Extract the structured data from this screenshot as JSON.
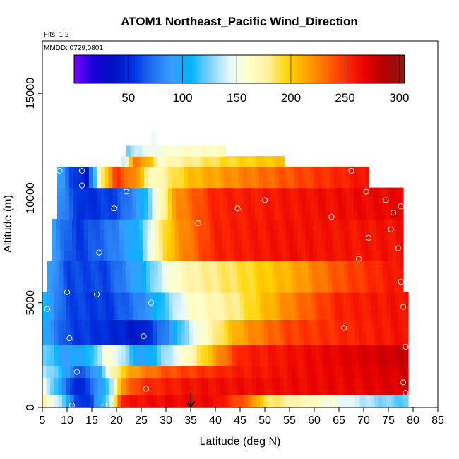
{
  "chart_data": {
    "type": "heatmap",
    "title": "ATOM1 Northeast_Pacific Wind_Direction",
    "flights_label": "Flts: 1,2",
    "dates_label": "MMDD: 0729,0801",
    "xlabel": "Latitude (deg N)",
    "ylabel": "Altitude (m)",
    "xlim": [
      5,
      85
    ],
    "ylim": [
      0,
      17500
    ],
    "x_ticks": [
      "5",
      "10",
      "15",
      "20",
      "25",
      "30",
      "35",
      "40",
      "45",
      "50",
      "55",
      "60",
      "65",
      "70",
      "75",
      "80",
      "85"
    ],
    "y_ticks": [
      "0",
      "5000",
      "10000",
      "15000"
    ],
    "y_tick_values": [
      0,
      5000,
      10000,
      15000
    ],
    "colorbar": {
      "range": [
        0,
        305
      ],
      "ticks": [
        "50",
        "100",
        "150",
        "200",
        "250",
        "300"
      ],
      "tick_values": [
        50,
        100,
        150,
        200,
        250,
        300
      ],
      "colors": [
        "#7a00ff",
        "#1a00d8",
        "#0010c0",
        "#0032e0",
        "#1e6ef0",
        "#3a9cff",
        "#00b4ff",
        "#7fd4ff",
        "#e6f8ff",
        "#ffffc8",
        "#fff0a0",
        "#ffd400",
        "#ffa200",
        "#ff6a00",
        "#ff2a00",
        "#e80000",
        "#b40000",
        "#8a1a1a"
      ]
    },
    "arrow_marker_latitude": 35,
    "layers": [
      {
        "alt": [
          0,
          600
        ],
        "x": [
          5,
          79
        ],
        "stops": [
          [
            5,
            180
          ],
          [
            10,
            110
          ],
          [
            12,
            50
          ],
          [
            15,
            60
          ],
          [
            17,
            110
          ],
          [
            19,
            140
          ],
          [
            21,
            260
          ],
          [
            30,
            265
          ],
          [
            40,
            265
          ],
          [
            47,
            230
          ],
          [
            50,
            190
          ],
          [
            58,
            170
          ],
          [
            65,
            150
          ],
          [
            72,
            130
          ],
          [
            78,
            120
          ]
        ]
      },
      {
        "alt": [
          600,
          1400
        ],
        "x": [
          5,
          79
        ],
        "stops": [
          [
            5,
            160
          ],
          [
            9,
            90
          ],
          [
            12,
            40
          ],
          [
            16,
            80
          ],
          [
            19,
            130
          ],
          [
            21,
            220
          ],
          [
            25,
            250
          ],
          [
            35,
            262
          ],
          [
            55,
            265
          ],
          [
            70,
            268
          ],
          [
            79,
            275
          ]
        ]
      },
      {
        "alt": [
          1400,
          2000
        ],
        "x": [
          5,
          79
        ],
        "stops": [
          [
            5,
            140
          ],
          [
            9,
            110
          ],
          [
            12,
            60
          ],
          [
            16,
            90
          ],
          [
            19,
            170
          ],
          [
            23,
            215
          ],
          [
            30,
            240
          ],
          [
            45,
            258
          ],
          [
            79,
            275
          ]
        ]
      },
      {
        "alt": [
          2000,
          3000
        ],
        "x": [
          5,
          79
        ],
        "stops": [
          [
            5,
            130
          ],
          [
            10,
            90
          ],
          [
            15,
            110
          ],
          [
            18,
            160
          ],
          [
            20,
            150
          ],
          [
            25,
            90
          ],
          [
            30,
            130
          ],
          [
            35,
            170
          ],
          [
            40,
            215
          ],
          [
            45,
            255
          ],
          [
            79,
            280
          ]
        ]
      },
      {
        "alt": [
          3000,
          4200
        ],
        "x": [
          5,
          79
        ],
        "stops": [
          [
            5,
            100
          ],
          [
            10,
            60
          ],
          [
            18,
            50
          ],
          [
            25,
            40
          ],
          [
            30,
            80
          ],
          [
            35,
            140
          ],
          [
            40,
            180
          ],
          [
            45,
            215
          ],
          [
            55,
            245
          ],
          [
            79,
            262
          ]
        ]
      },
      {
        "alt": [
          4200,
          5500
        ],
        "x": [
          5,
          79
        ],
        "stops": [
          [
            5,
            110
          ],
          [
            10,
            60
          ],
          [
            18,
            55
          ],
          [
            25,
            80
          ],
          [
            30,
            120
          ],
          [
            35,
            160
          ],
          [
            45,
            185
          ],
          [
            55,
            225
          ],
          [
            65,
            255
          ],
          [
            79,
            262
          ]
        ]
      },
      {
        "alt": [
          5500,
          7000
        ],
        "x": [
          6,
          78
        ],
        "stops": [
          [
            6,
            100
          ],
          [
            10,
            60
          ],
          [
            18,
            60
          ],
          [
            25,
            100
          ],
          [
            30,
            150
          ],
          [
            35,
            175
          ],
          [
            45,
            190
          ],
          [
            55,
            210
          ],
          [
            65,
            240
          ],
          [
            78,
            262
          ]
        ]
      },
      {
        "alt": [
          7000,
          9000
        ],
        "x": [
          7,
          78
        ],
        "stops": [
          [
            7,
            90
          ],
          [
            12,
            55
          ],
          [
            20,
            80
          ],
          [
            25,
            110
          ],
          [
            28,
            170
          ],
          [
            32,
            215
          ],
          [
            40,
            255
          ],
          [
            55,
            262
          ],
          [
            68,
            260
          ],
          [
            78,
            262
          ]
        ]
      },
      {
        "alt": [
          9000,
          10500
        ],
        "x": [
          8,
          78
        ],
        "stops": [
          [
            8,
            90
          ],
          [
            13,
            50
          ],
          [
            20,
            60
          ],
          [
            25,
            95
          ],
          [
            28,
            150
          ],
          [
            32,
            220
          ],
          [
            40,
            255
          ],
          [
            60,
            262
          ],
          [
            78,
            268
          ]
        ]
      },
      {
        "alt": [
          10500,
          11500
        ],
        "x": [
          8,
          71
        ],
        "stops": [
          [
            8,
            100
          ],
          [
            11,
            60
          ],
          [
            14,
            40
          ],
          [
            17,
            180
          ],
          [
            20,
            250
          ],
          [
            25,
            210
          ],
          [
            27,
            160
          ],
          [
            30,
            180
          ],
          [
            35,
            205
          ],
          [
            45,
            225
          ],
          [
            55,
            240
          ],
          [
            71,
            262
          ]
        ]
      },
      {
        "alt": [
          11500,
          12000
        ],
        "x": [
          21,
          54
        ],
        "stops": [
          [
            21,
            130
          ],
          [
            24,
            235
          ],
          [
            27,
            200
          ],
          [
            29,
            160
          ],
          [
            32,
            175
          ],
          [
            40,
            190
          ],
          [
            54,
            205
          ]
        ]
      },
      {
        "alt": [
          12000,
          12500
        ],
        "x": [
          22,
          42
        ],
        "stops": [
          [
            22,
            115
          ],
          [
            24,
            140
          ],
          [
            27,
            150
          ],
          [
            32,
            160
          ],
          [
            42,
            165
          ]
        ]
      },
      {
        "alt": [
          12500,
          13200
        ],
        "x": [
          27,
          28
        ],
        "stops": [
          [
            27,
            150
          ],
          [
            28,
            150
          ]
        ]
      }
    ],
    "points": [
      [
        8.5,
        11300
      ],
      [
        13,
        11300
      ],
      [
        67.5,
        11300
      ],
      [
        13,
        10600
      ],
      [
        22,
        10300
      ],
      [
        70.5,
        10300
      ],
      [
        74.5,
        9900
      ],
      [
        50,
        9900
      ],
      [
        77.5,
        9600
      ],
      [
        19.5,
        9500
      ],
      [
        44.5,
        9500
      ],
      [
        76,
        9300
      ],
      [
        63.5,
        9100
      ],
      [
        36.5,
        8800
      ],
      [
        75.5,
        8500
      ],
      [
        71,
        8100
      ],
      [
        77,
        7600
      ],
      [
        16.5,
        7400
      ],
      [
        69,
        7100
      ],
      [
        77.5,
        6000
      ],
      [
        10,
        5500
      ],
      [
        16,
        5400
      ],
      [
        27,
        5000
      ],
      [
        6,
        4700
      ],
      [
        78,
        4800
      ],
      [
        66,
        3800
      ],
      [
        25.5,
        3400
      ],
      [
        10.5,
        3300
      ],
      [
        78.5,
        2900
      ],
      [
        19,
        2700
      ],
      [
        12,
        1700
      ],
      [
        78,
        1200
      ],
      [
        26,
        900
      ],
      [
        78.5,
        700
      ],
      [
        11,
        100
      ],
      [
        17.5,
        100
      ],
      [
        18.5,
        100
      ]
    ]
  }
}
